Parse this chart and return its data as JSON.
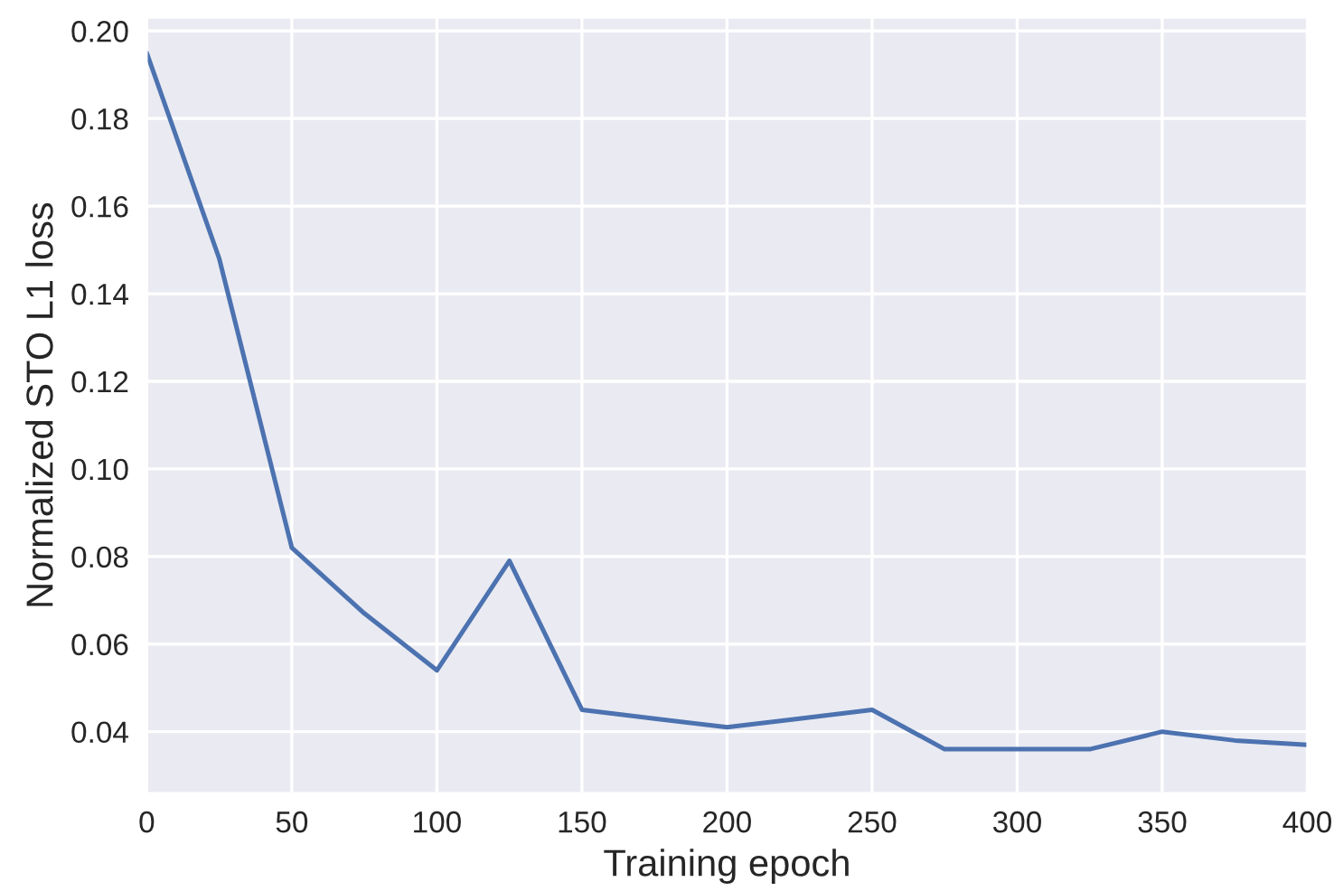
{
  "chart_data": {
    "type": "line",
    "xlabel": "Training epoch",
    "ylabel": "Normalized STO L1 loss",
    "x": [
      0,
      25,
      50,
      75,
      100,
      125,
      150,
      175,
      200,
      225,
      250,
      275,
      300,
      325,
      350,
      375,
      400
    ],
    "series": [
      {
        "color": "#4c72b0",
        "values": [
          0.195,
          0.148,
          0.082,
          0.067,
          0.054,
          0.079,
          0.045,
          0.043,
          0.041,
          0.043,
          0.045,
          0.036,
          0.036,
          0.036,
          0.04,
          0.038,
          0.037
        ]
      }
    ],
    "xlim": [
      0,
      400
    ],
    "ylim": [
      0.026,
      0.203
    ],
    "xticks": [
      0,
      50,
      100,
      150,
      200,
      250,
      300,
      350,
      400
    ],
    "yticks": [
      0.04,
      0.06,
      0.08,
      {
        "value": 0.1,
        "label": "0.10"
      },
      0.12,
      0.14,
      0.16,
      0.18,
      {
        "value": 0.2,
        "label": "0.20"
      }
    ],
    "grid": true,
    "line_style": "solid",
    "marker": "none"
  }
}
